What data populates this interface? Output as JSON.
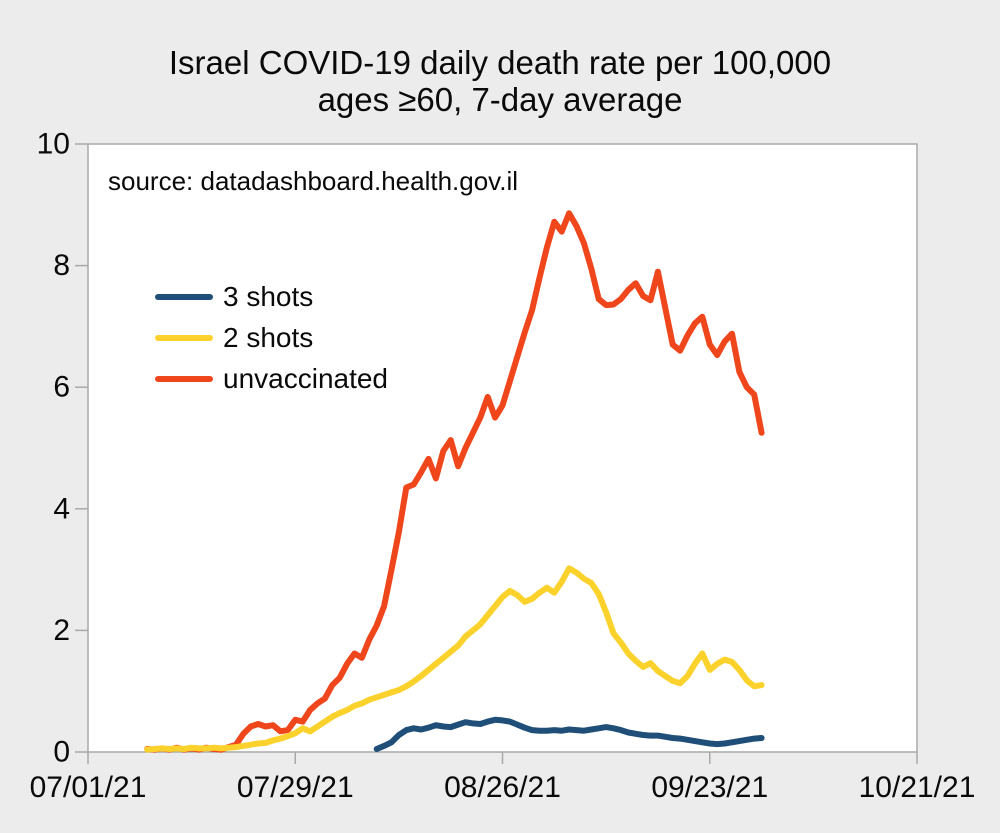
{
  "title": {
    "line1": "Israel COVID-19 daily death rate per 100,000",
    "line2": "ages ≥60, 7-day average"
  },
  "source_note": "source: datadashboard.health.gov.il",
  "legend": [
    {
      "label": "3 shots",
      "color": "#1F4E79"
    },
    {
      "label": "2 shots",
      "color": "#FBD22C"
    },
    {
      "label": "unvaccinated",
      "color": "#F0461C"
    }
  ],
  "colors": {
    "background": "#ECECEC",
    "plot_background": "#FFFFFF",
    "axis_line": "#A9A9A9",
    "text": "#0A0A0A"
  },
  "chart_data": {
    "type": "line",
    "title": "Israel COVID-19 daily death rate per 100,000 ages ≥60, 7-day average",
    "annotation": "source: datadashboard.health.gov.il",
    "x_axis": {
      "unit": "days since 07/01/21",
      "range_days": [
        0,
        112
      ],
      "tick_days": [
        0,
        28,
        56,
        84,
        112
      ],
      "tick_labels": [
        "07/01/21",
        "07/29/21",
        "08/26/21",
        "09/23/21",
        "10/21/21"
      ]
    },
    "y_axis": {
      "min": 0,
      "max": 10,
      "tick_interval": 2,
      "tick_labels": [
        "0",
        "2",
        "4",
        "6",
        "8",
        "10"
      ],
      "gridlines": false
    },
    "legend_position": "inside-top-left",
    "series": [
      {
        "name": "unvaccinated",
        "color": "#F0461C",
        "points": [
          [
            8,
            0.05
          ],
          [
            9,
            0.04
          ],
          [
            10,
            0.06
          ],
          [
            11,
            0.04
          ],
          [
            12,
            0.07
          ],
          [
            13,
            0.04
          ],
          [
            14,
            0.06
          ],
          [
            15,
            0.04
          ],
          [
            16,
            0.07
          ],
          [
            17,
            0.05
          ],
          [
            18,
            0.04
          ],
          [
            19,
            0.08
          ],
          [
            20,
            0.12
          ],
          [
            21,
            0.3
          ],
          [
            22,
            0.42
          ],
          [
            23,
            0.46
          ],
          [
            24,
            0.42
          ],
          [
            25,
            0.44
          ],
          [
            26,
            0.34
          ],
          [
            27,
            0.36
          ],
          [
            28,
            0.53
          ],
          [
            29,
            0.5
          ],
          [
            30,
            0.69
          ],
          [
            31,
            0.8
          ],
          [
            32,
            0.88
          ],
          [
            33,
            1.1
          ],
          [
            34,
            1.22
          ],
          [
            35,
            1.45
          ],
          [
            36,
            1.62
          ],
          [
            37,
            1.55
          ],
          [
            38,
            1.85
          ],
          [
            39,
            2.08
          ],
          [
            40,
            2.4
          ],
          [
            41,
            3.0
          ],
          [
            42,
            3.62
          ],
          [
            43,
            4.35
          ],
          [
            44,
            4.4
          ],
          [
            45,
            4.6
          ],
          [
            46,
            4.82
          ],
          [
            47,
            4.5
          ],
          [
            48,
            4.95
          ],
          [
            49,
            5.13
          ],
          [
            50,
            4.7
          ],
          [
            51,
            5.0
          ],
          [
            52,
            5.25
          ],
          [
            53,
            5.5
          ],
          [
            54,
            5.84
          ],
          [
            55,
            5.5
          ],
          [
            56,
            5.7
          ],
          [
            57,
            6.1
          ],
          [
            58,
            6.5
          ],
          [
            59,
            6.9
          ],
          [
            60,
            7.27
          ],
          [
            61,
            7.8
          ],
          [
            62,
            8.3
          ],
          [
            63,
            8.72
          ],
          [
            64,
            8.56
          ],
          [
            65,
            8.86
          ],
          [
            66,
            8.65
          ],
          [
            67,
            8.37
          ],
          [
            68,
            7.95
          ],
          [
            69,
            7.45
          ],
          [
            70,
            7.35
          ],
          [
            71,
            7.36
          ],
          [
            72,
            7.45
          ],
          [
            73,
            7.6
          ],
          [
            74,
            7.71
          ],
          [
            75,
            7.5
          ],
          [
            76,
            7.43
          ],
          [
            77,
            7.9
          ],
          [
            78,
            7.3
          ],
          [
            79,
            6.7
          ],
          [
            80,
            6.6
          ],
          [
            81,
            6.85
          ],
          [
            82,
            7.05
          ],
          [
            83,
            7.16
          ],
          [
            84,
            6.7
          ],
          [
            85,
            6.53
          ],
          [
            86,
            6.75
          ],
          [
            87,
            6.88
          ],
          [
            88,
            6.25
          ],
          [
            89,
            6.0
          ],
          [
            90,
            5.88
          ],
          [
            91,
            5.25
          ]
        ]
      },
      {
        "name": "2 shots",
        "color": "#FBD22C",
        "points": [
          [
            8,
            0.04
          ],
          [
            9,
            0.05
          ],
          [
            10,
            0.06
          ],
          [
            11,
            0.05
          ],
          [
            12,
            0.06
          ],
          [
            13,
            0.05
          ],
          [
            14,
            0.07
          ],
          [
            15,
            0.06
          ],
          [
            16,
            0.06
          ],
          [
            17,
            0.07
          ],
          [
            18,
            0.06
          ],
          [
            19,
            0.07
          ],
          [
            20,
            0.08
          ],
          [
            21,
            0.1
          ],
          [
            22,
            0.12
          ],
          [
            23,
            0.14
          ],
          [
            24,
            0.15
          ],
          [
            25,
            0.19
          ],
          [
            26,
            0.22
          ],
          [
            27,
            0.26
          ],
          [
            28,
            0.31
          ],
          [
            29,
            0.39
          ],
          [
            30,
            0.34
          ],
          [
            31,
            0.42
          ],
          [
            32,
            0.5
          ],
          [
            33,
            0.58
          ],
          [
            34,
            0.64
          ],
          [
            35,
            0.69
          ],
          [
            36,
            0.76
          ],
          [
            37,
            0.8
          ],
          [
            38,
            0.86
          ],
          [
            39,
            0.9
          ],
          [
            40,
            0.94
          ],
          [
            41,
            0.98
          ],
          [
            42,
            1.02
          ],
          [
            43,
            1.08
          ],
          [
            44,
            1.16
          ],
          [
            45,
            1.25
          ],
          [
            46,
            1.35
          ],
          [
            47,
            1.45
          ],
          [
            48,
            1.55
          ],
          [
            49,
            1.65
          ],
          [
            50,
            1.75
          ],
          [
            51,
            1.9
          ],
          [
            52,
            2.0
          ],
          [
            53,
            2.1
          ],
          [
            54,
            2.25
          ],
          [
            55,
            2.4
          ],
          [
            56,
            2.55
          ],
          [
            57,
            2.65
          ],
          [
            58,
            2.58
          ],
          [
            59,
            2.47
          ],
          [
            60,
            2.52
          ],
          [
            61,
            2.62
          ],
          [
            62,
            2.7
          ],
          [
            63,
            2.62
          ],
          [
            64,
            2.8
          ],
          [
            65,
            3.02
          ],
          [
            66,
            2.95
          ],
          [
            67,
            2.85
          ],
          [
            68,
            2.78
          ],
          [
            69,
            2.6
          ],
          [
            70,
            2.3
          ],
          [
            71,
            1.95
          ],
          [
            72,
            1.8
          ],
          [
            73,
            1.62
          ],
          [
            74,
            1.5
          ],
          [
            75,
            1.4
          ],
          [
            76,
            1.46
          ],
          [
            77,
            1.33
          ],
          [
            78,
            1.25
          ],
          [
            79,
            1.17
          ],
          [
            80,
            1.13
          ],
          [
            81,
            1.25
          ],
          [
            82,
            1.45
          ],
          [
            83,
            1.62
          ],
          [
            84,
            1.35
          ],
          [
            85,
            1.45
          ],
          [
            86,
            1.52
          ],
          [
            87,
            1.48
          ],
          [
            88,
            1.35
          ],
          [
            89,
            1.18
          ],
          [
            90,
            1.08
          ],
          [
            91,
            1.1
          ]
        ]
      },
      {
        "name": "3 shots",
        "color": "#1F4E79",
        "points": [
          [
            39,
            0.05
          ],
          [
            40,
            0.1
          ],
          [
            41,
            0.16
          ],
          [
            42,
            0.28
          ],
          [
            43,
            0.36
          ],
          [
            44,
            0.39
          ],
          [
            45,
            0.37
          ],
          [
            46,
            0.4
          ],
          [
            47,
            0.44
          ],
          [
            48,
            0.42
          ],
          [
            49,
            0.41
          ],
          [
            50,
            0.45
          ],
          [
            51,
            0.49
          ],
          [
            52,
            0.47
          ],
          [
            53,
            0.46
          ],
          [
            54,
            0.5
          ],
          [
            55,
            0.53
          ],
          [
            56,
            0.52
          ],
          [
            57,
            0.5
          ],
          [
            58,
            0.45
          ],
          [
            59,
            0.4
          ],
          [
            60,
            0.36
          ],
          [
            61,
            0.35
          ],
          [
            62,
            0.35
          ],
          [
            63,
            0.36
          ],
          [
            64,
            0.35
          ],
          [
            65,
            0.37
          ],
          [
            66,
            0.36
          ],
          [
            67,
            0.35
          ],
          [
            68,
            0.37
          ],
          [
            69,
            0.39
          ],
          [
            70,
            0.41
          ],
          [
            71,
            0.39
          ],
          [
            72,
            0.36
          ],
          [
            73,
            0.32
          ],
          [
            74,
            0.3
          ],
          [
            75,
            0.28
          ],
          [
            76,
            0.27
          ],
          [
            77,
            0.27
          ],
          [
            78,
            0.25
          ],
          [
            79,
            0.23
          ],
          [
            80,
            0.22
          ],
          [
            81,
            0.2
          ],
          [
            82,
            0.18
          ],
          [
            83,
            0.16
          ],
          [
            84,
            0.14
          ],
          [
            85,
            0.13
          ],
          [
            86,
            0.14
          ],
          [
            87,
            0.16
          ],
          [
            88,
            0.18
          ],
          [
            89,
            0.2
          ],
          [
            90,
            0.22
          ],
          [
            91,
            0.23
          ]
        ]
      }
    ]
  }
}
